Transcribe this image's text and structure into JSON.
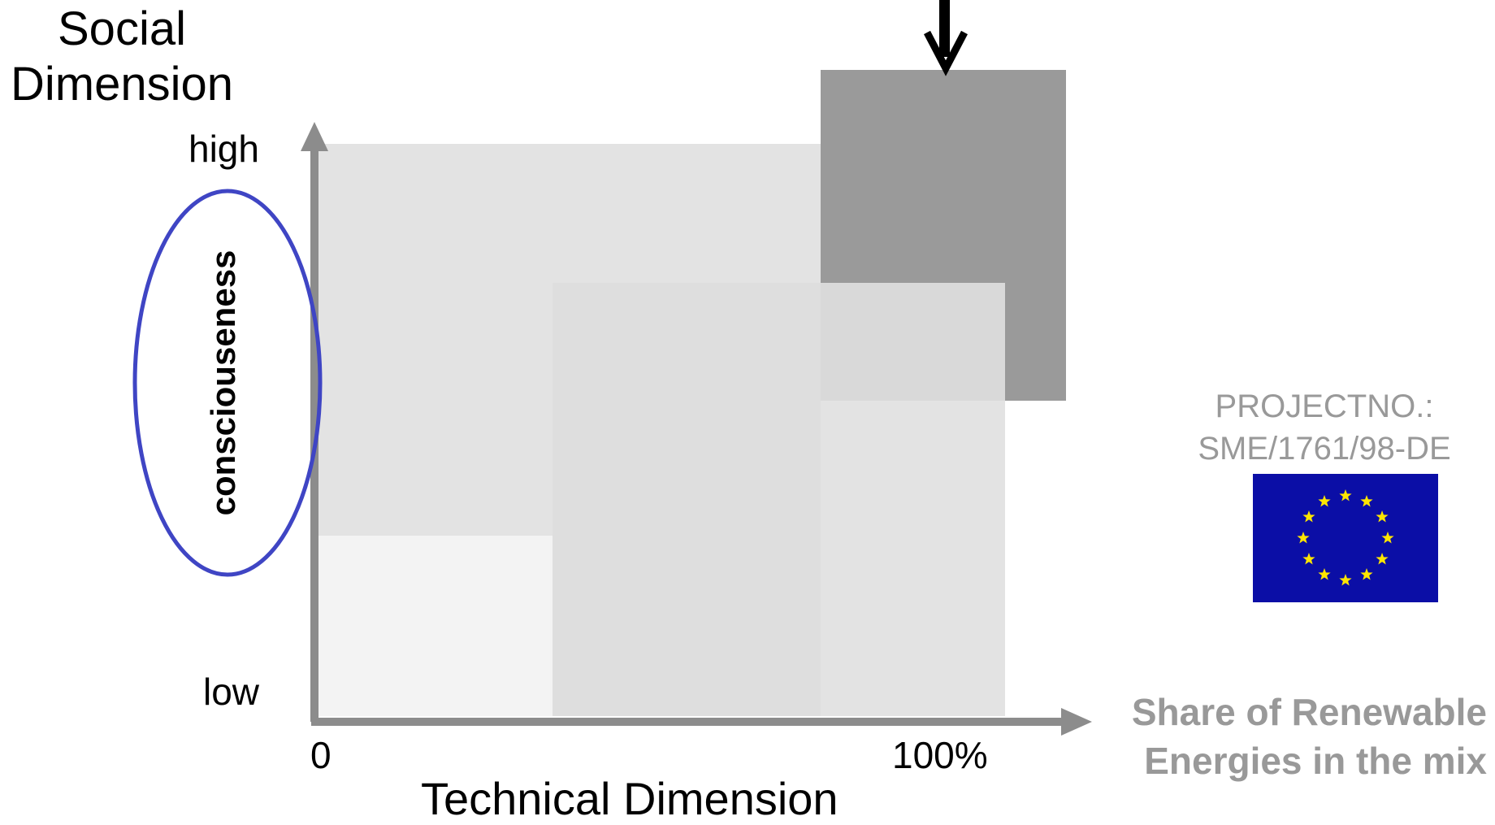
{
  "social_dimension": {
    "line1": "Social",
    "line2": "Dimension"
  },
  "y_axis": {
    "high_label": "high",
    "low_label": "low"
  },
  "x_axis": {
    "zero_label": "0",
    "hundred_label": "100%"
  },
  "technical_dimension": "Technical Dimension",
  "share_label": {
    "line1": "Share of Renewable",
    "line2": "Energies in the mix"
  },
  "consciousness_label": "consciouseness",
  "project": {
    "line1": "PROJECTNO.:",
    "line2": "SME/1761/98-DE"
  },
  "colors": {
    "axis": "#8c8c8c",
    "ellipse": "#3f45c4",
    "dark_block": "#9a9a9a",
    "light_block": "#e3e3e3",
    "pale_block": "#f3f3f3",
    "mid_block": "#dddddd",
    "eu_blue": "#0b0ea6",
    "eu_star": "#ffe600",
    "gray_text": "#999999"
  }
}
